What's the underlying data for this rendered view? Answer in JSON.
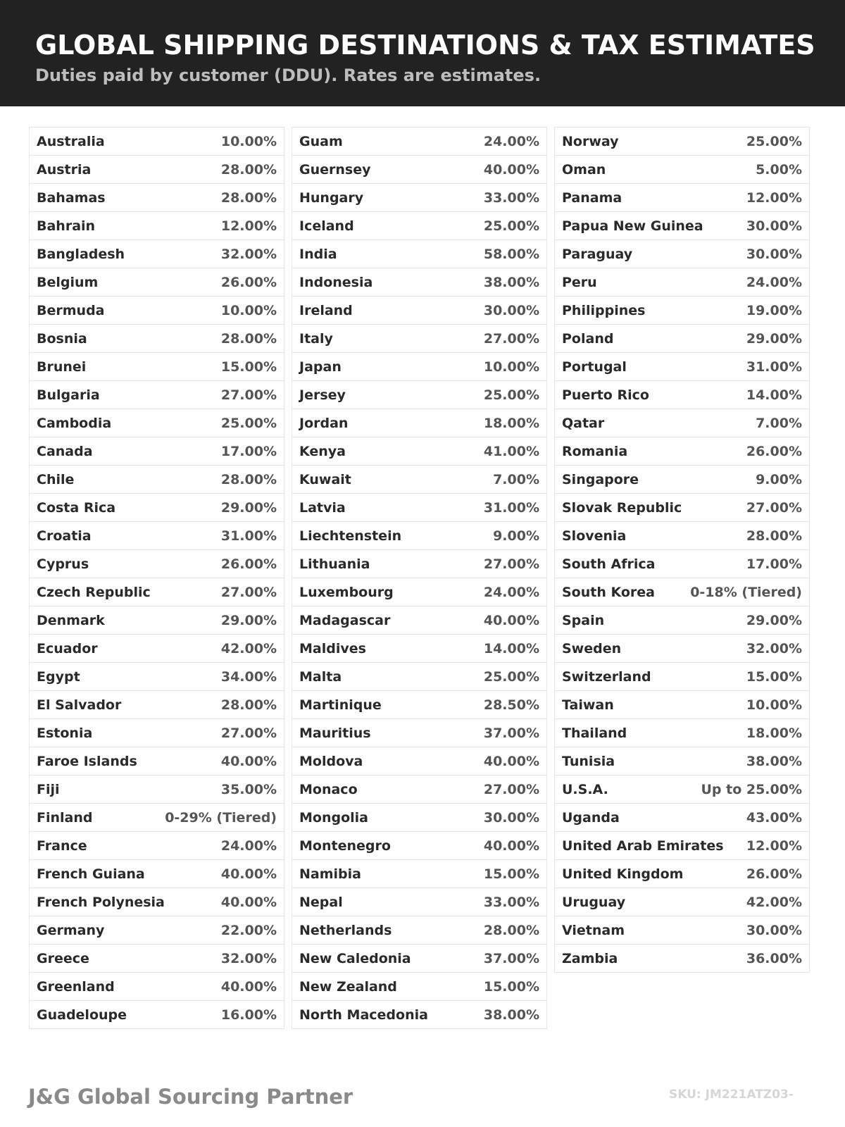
{
  "header": {
    "title": "GLOBAL SHIPPING DESTINATIONS & TAX ESTIMATES",
    "subtitle": "Duties paid by customer (DDU). Rates are estimates."
  },
  "columns": [
    [
      [
        "Australia",
        "10.00%"
      ],
      [
        "Austria",
        "28.00%"
      ],
      [
        "Bahamas",
        "28.00%"
      ],
      [
        "Bahrain",
        "12.00%"
      ],
      [
        "Bangladesh",
        "32.00%"
      ],
      [
        "Belgium",
        "26.00%"
      ],
      [
        "Bermuda",
        "10.00%"
      ],
      [
        "Bosnia",
        "28.00%"
      ],
      [
        "Brunei",
        "15.00%"
      ],
      [
        "Bulgaria",
        "27.00%"
      ],
      [
        "Cambodia",
        "25.00%"
      ],
      [
        "Canada",
        "17.00%"
      ],
      [
        "Chile",
        "28.00%"
      ],
      [
        "Costa Rica",
        "29.00%"
      ],
      [
        "Croatia",
        "31.00%"
      ],
      [
        "Cyprus",
        "26.00%"
      ],
      [
        "Czech Republic",
        "27.00%"
      ],
      [
        "Denmark",
        "29.00%"
      ],
      [
        "Ecuador",
        "42.00%"
      ],
      [
        "Egypt",
        "34.00%"
      ],
      [
        "El Salvador",
        "28.00%"
      ],
      [
        "Estonia",
        "27.00%"
      ],
      [
        "Faroe Islands",
        "40.00%"
      ],
      [
        "Fiji",
        "35.00%"
      ],
      [
        "Finland",
        "0-29% (Tiered)"
      ],
      [
        "France",
        "24.00%"
      ],
      [
        "French Guiana",
        "40.00%"
      ],
      [
        "French Polynesia",
        "40.00%"
      ],
      [
        "Germany",
        "22.00%"
      ],
      [
        "Greece",
        "32.00%"
      ],
      [
        "Greenland",
        "40.00%"
      ],
      [
        "Guadeloupe",
        "16.00%"
      ]
    ],
    [
      [
        "Guam",
        "24.00%"
      ],
      [
        "Guernsey",
        "40.00%"
      ],
      [
        "Hungary",
        "33.00%"
      ],
      [
        "Iceland",
        "25.00%"
      ],
      [
        "India",
        "58.00%"
      ],
      [
        "Indonesia",
        "38.00%"
      ],
      [
        "Ireland",
        "30.00%"
      ],
      [
        "Italy",
        "27.00%"
      ],
      [
        "Japan",
        "10.00%"
      ],
      [
        "Jersey",
        "25.00%"
      ],
      [
        "Jordan",
        "18.00%"
      ],
      [
        "Kenya",
        "41.00%"
      ],
      [
        "Kuwait",
        "7.00%"
      ],
      [
        "Latvia",
        "31.00%"
      ],
      [
        "Liechtenstein",
        "9.00%"
      ],
      [
        "Lithuania",
        "27.00%"
      ],
      [
        "Luxembourg",
        "24.00%"
      ],
      [
        "Madagascar",
        "40.00%"
      ],
      [
        "Maldives",
        "14.00%"
      ],
      [
        "Malta",
        "25.00%"
      ],
      [
        "Martinique",
        "28.50%"
      ],
      [
        "Mauritius",
        "37.00%"
      ],
      [
        "Moldova",
        "40.00%"
      ],
      [
        "Monaco",
        "27.00%"
      ],
      [
        "Mongolia",
        "30.00%"
      ],
      [
        "Montenegro",
        "40.00%"
      ],
      [
        "Namibia",
        "15.00%"
      ],
      [
        "Nepal",
        "33.00%"
      ],
      [
        "Netherlands",
        "28.00%"
      ],
      [
        "New Caledonia",
        "37.00%"
      ],
      [
        "New Zealand",
        "15.00%"
      ],
      [
        "North Macedonia",
        "38.00%"
      ]
    ],
    [
      [
        "Norway",
        "25.00%"
      ],
      [
        "Oman",
        "5.00%"
      ],
      [
        "Panama",
        "12.00%"
      ],
      [
        "Papua New Guinea",
        "30.00%"
      ],
      [
        "Paraguay",
        "30.00%"
      ],
      [
        "Peru",
        "24.00%"
      ],
      [
        "Philippines",
        "19.00%"
      ],
      [
        "Poland",
        "29.00%"
      ],
      [
        "Portugal",
        "31.00%"
      ],
      [
        "Puerto Rico",
        "14.00%"
      ],
      [
        "Qatar",
        "7.00%"
      ],
      [
        "Romania",
        "26.00%"
      ],
      [
        "Singapore",
        "9.00%"
      ],
      [
        "Slovak Republic",
        "27.00%"
      ],
      [
        "Slovenia",
        "28.00%"
      ],
      [
        "South Africa",
        "17.00%"
      ],
      [
        "South Korea",
        "0-18% (Tiered)"
      ],
      [
        "Spain",
        "29.00%"
      ],
      [
        "Sweden",
        "32.00%"
      ],
      [
        "Switzerland",
        "15.00%"
      ],
      [
        "Taiwan",
        "10.00%"
      ],
      [
        "Thailand",
        "18.00%"
      ],
      [
        "Tunisia",
        "38.00%"
      ],
      [
        "U.S.A.",
        "Up to 25.00%"
      ],
      [
        "Uganda",
        "43.00%"
      ],
      [
        "United Arab Emirates",
        "12.00%"
      ],
      [
        "United Kingdom",
        "26.00%"
      ],
      [
        "Uruguay",
        "42.00%"
      ],
      [
        "Vietnam",
        "30.00%"
      ],
      [
        "Zambia",
        "36.00%"
      ]
    ]
  ],
  "footer": {
    "brand": "J&G Global Sourcing Partner",
    "sku": "SKU: JM221ATZ03-"
  }
}
